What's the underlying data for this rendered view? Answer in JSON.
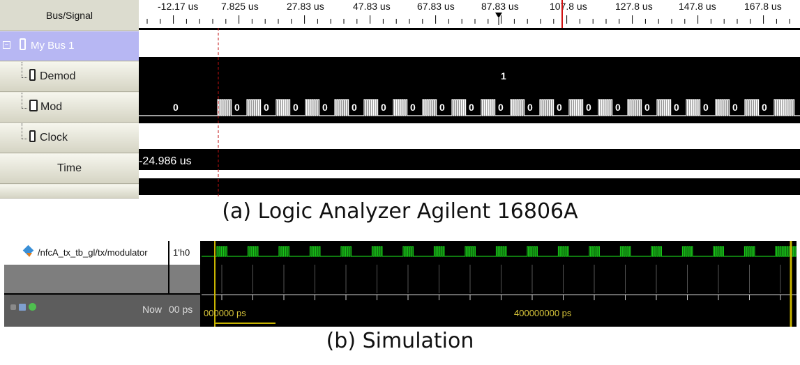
{
  "logic_analyzer": {
    "header": "Bus/Signal",
    "tick_labels": [
      "-12.17 us",
      "7.825 us",
      "27.83 us",
      "47.83 us",
      "67.83 us",
      "87.83 us",
      "107.8 us",
      "127.8 us",
      "147.8 us",
      "167.8 us"
    ],
    "rows": {
      "bus": "My Bus 1",
      "demod": "Demod",
      "mod": "Mod",
      "clock": "Clock",
      "time": "Time"
    },
    "demod_value": "1",
    "mod_values": {
      "initial": "0",
      "between_bursts": "0"
    },
    "time_value": "-24.986 us"
  },
  "captions": {
    "a": "(a) Logic Analyzer Agilent 16806A",
    "b": "(b) Simulation"
  },
  "simulation": {
    "signal_path": "/nfcA_tx_tb_gl/tx/modulator",
    "signal_value": "1'h0",
    "now_label": "Now",
    "now_value": "00 ps",
    "time_labels": [
      "000000 ps",
      "400000000 ps"
    ],
    "colors": {
      "wave": "#18c418",
      "cursor": "#c8b400",
      "grid": "#4a4a4a"
    }
  }
}
